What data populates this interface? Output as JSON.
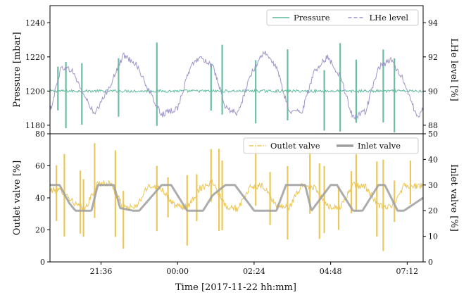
{
  "chart_data": [
    {
      "type": "line",
      "panel": "top",
      "xlabel": "",
      "ylabel": "Pressure [mbar]",
      "ylabel_right": "LHe level [%]",
      "xlim": [
        20.0,
        31.7
      ],
      "ylim": [
        1175,
        1250
      ],
      "ylim_right": [
        87.5,
        95
      ],
      "yticks": [
        1180,
        1200,
        1220,
        1240
      ],
      "yticks_right": [
        88,
        90,
        92,
        94
      ],
      "legend_position": "top-right",
      "grid": false,
      "series": [
        {
          "name": "Pressure",
          "axis": "left",
          "color": "#5cb899",
          "style": "solid",
          "nominal": 1200,
          "spike_times": [
            20.25,
            20.5,
            21.0,
            22.15,
            23.35,
            25.05,
            25.4,
            26.45,
            27.45,
            28.6,
            29.1,
            29.6,
            30.45,
            30.8
          ]
        },
        {
          "name": "LHe level",
          "axis": "right",
          "color": "#9b90c8",
          "style": "dashed",
          "x": [
            20.0,
            20.35,
            20.7,
            21.0,
            21.4,
            21.9,
            22.3,
            22.7,
            23.1,
            23.5,
            24.0,
            24.4,
            24.7,
            25.1,
            25.5,
            25.9,
            26.3,
            26.7,
            27.1,
            27.5,
            27.9,
            28.3,
            28.7,
            29.1,
            29.5,
            29.9,
            30.3,
            30.7,
            31.1,
            31.5,
            31.7
          ],
          "y": [
            88.8,
            91.4,
            91.2,
            90.0,
            88.6,
            90.4,
            92.1,
            91.6,
            90.0,
            88.6,
            89.0,
            91.4,
            92.0,
            91.5,
            89.0,
            88.7,
            91.0,
            92.3,
            91.4,
            88.8,
            88.8,
            91.2,
            92.0,
            90.9,
            88.4,
            88.8,
            91.4,
            91.8,
            90.6,
            88.5,
            88.9
          ]
        }
      ]
    },
    {
      "type": "line",
      "panel": "bottom",
      "xlabel": "Time [2017-11-22 hh:mm]",
      "ylabel": "Outlet valve [%]",
      "ylabel_right": "Inlet valve [%]",
      "xlim": [
        20.0,
        31.7
      ],
      "ylim": [
        0,
        80
      ],
      "ylim_right": [
        0,
        50
      ],
      "yticks": [
        0,
        20,
        40,
        60,
        80
      ],
      "yticks_right": [
        0,
        10,
        20,
        30,
        40,
        50
      ],
      "xticks": [
        21.6,
        24.0,
        26.4,
        28.8,
        31.2
      ],
      "xtick_labels": [
        "21:36",
        "00:00",
        "02:24",
        "04:48",
        "07:12"
      ],
      "legend_position": "top-right",
      "grid": false,
      "series": [
        {
          "name": "Outlet valve",
          "axis": "left",
          "color": "#e8c24c",
          "style": "dash-dot",
          "x": [
            20.0,
            20.4,
            20.8,
            21.1,
            21.5,
            21.9,
            22.3,
            22.7,
            23.1,
            23.5,
            23.9,
            24.3,
            24.7,
            25.1,
            25.5,
            25.9,
            26.3,
            26.7,
            27.1,
            27.5,
            27.9,
            28.3,
            28.7,
            29.1,
            29.5,
            29.9,
            30.3,
            30.7,
            31.1,
            31.5,
            31.7
          ],
          "y": [
            45,
            44,
            36,
            33,
            49,
            49,
            34,
            34,
            48,
            46,
            35,
            34,
            46,
            50,
            35,
            33,
            47,
            47,
            35,
            34,
            48,
            46,
            35,
            34,
            48,
            47,
            35,
            34,
            48,
            47,
            48
          ],
          "spike_times": [
            20.2,
            20.45,
            20.95,
            21.05,
            21.4,
            22.05,
            22.3,
            23.35,
            23.7,
            24.3,
            24.6,
            25.05,
            25.3,
            25.4,
            26.45,
            26.9,
            27.45,
            28.15,
            28.45,
            28.6,
            29.05,
            29.45,
            29.6,
            30.25,
            30.45,
            30.8,
            31.3
          ]
        },
        {
          "name": "Inlet valve",
          "axis": "right",
          "color": "#9e9e9e",
          "style": "solid",
          "x": [
            20.0,
            20.3,
            20.6,
            20.8,
            21.3,
            21.5,
            22.0,
            22.2,
            22.6,
            22.8,
            23.5,
            23.8,
            24.3,
            24.5,
            24.8,
            25.1,
            25.5,
            25.8,
            26.4,
            26.6,
            27.1,
            27.4,
            28.0,
            28.2,
            28.8,
            29.0,
            29.5,
            29.8,
            30.3,
            30.5,
            30.9,
            31.1,
            31.7
          ],
          "y": [
            30,
            30,
            23,
            20,
            20,
            30,
            30,
            21,
            20,
            20,
            30,
            30,
            20,
            20,
            20,
            26,
            30,
            30,
            20,
            20,
            20,
            30,
            30,
            20,
            30,
            30,
            20,
            20,
            30,
            30,
            20,
            20,
            25
          ]
        }
      ]
    }
  ]
}
